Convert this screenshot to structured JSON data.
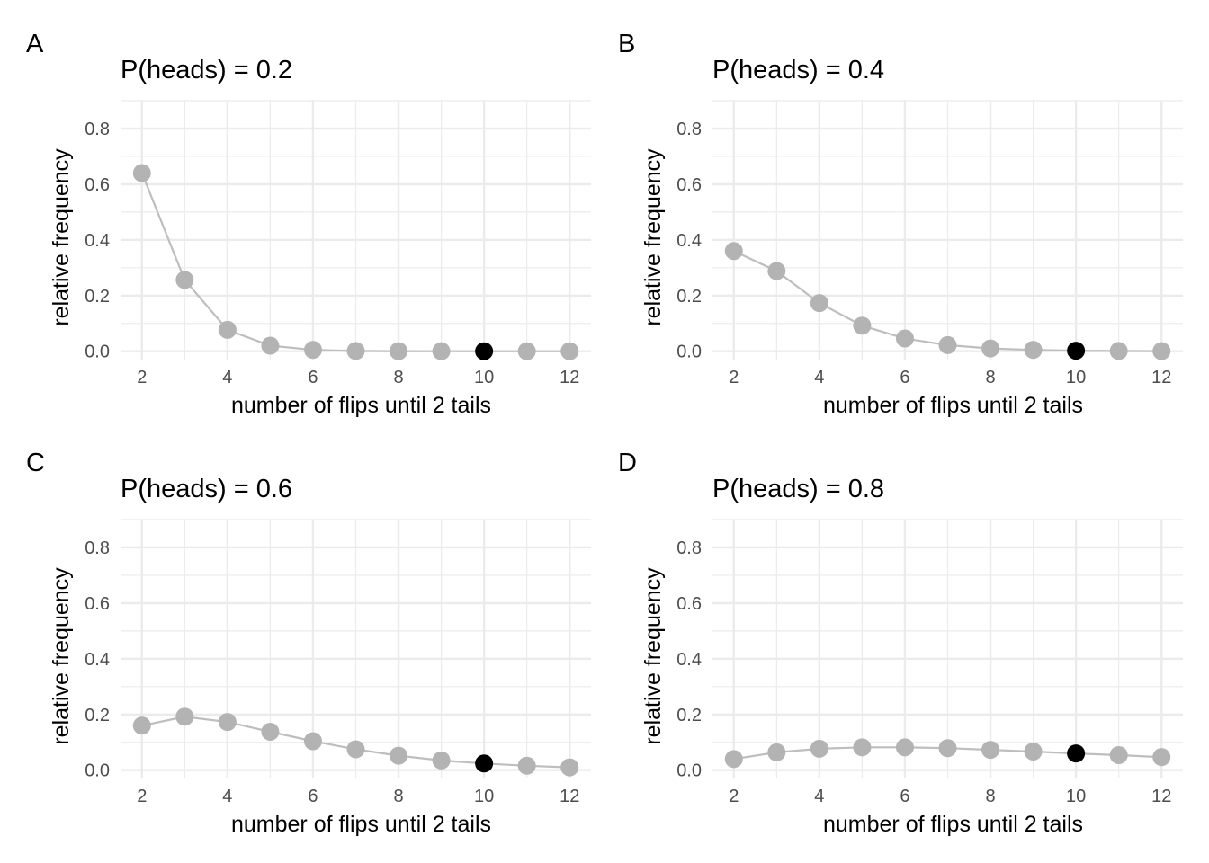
{
  "colors": {
    "point": "#b3b3b3",
    "highlight": "#000000",
    "line": "#bebebe",
    "grid": "#ebebeb"
  },
  "chart_data": [
    {
      "type": "line",
      "tag": "A",
      "title": "P(heads) = 0.2",
      "xlabel": "number of flips until 2 tails",
      "ylabel": "relative frequency",
      "x": [
        2,
        3,
        4,
        5,
        6,
        7,
        8,
        9,
        10,
        11,
        12
      ],
      "values": [
        0.64,
        0.256,
        0.077,
        0.02,
        0.005,
        0.001,
        0.0003,
        0.0001,
        2e-05,
        5e-06,
        1e-06
      ],
      "highlight_x": 10,
      "xlim": [
        1.5,
        12.5
      ],
      "ylim": [
        -0.03,
        0.9
      ],
      "xticks": [
        2,
        4,
        6,
        8,
        10,
        12
      ],
      "yticks": [
        0.0,
        0.2,
        0.4,
        0.6,
        0.8
      ],
      "ytick_labels": [
        "0.0",
        "0.2",
        "0.4",
        "0.6",
        "0.8"
      ],
      "grid": true
    },
    {
      "type": "line",
      "tag": "B",
      "title": "P(heads) = 0.4",
      "xlabel": "number of flips until 2 tails",
      "ylabel": "relative frequency",
      "x": [
        2,
        3,
        4,
        5,
        6,
        7,
        8,
        9,
        10,
        11,
        12
      ],
      "values": [
        0.36,
        0.288,
        0.173,
        0.092,
        0.046,
        0.022,
        0.01,
        0.005,
        0.002,
        0.001,
        0.0004
      ],
      "highlight_x": 10,
      "xlim": [
        1.5,
        12.5
      ],
      "ylim": [
        -0.03,
        0.9
      ],
      "xticks": [
        2,
        4,
        6,
        8,
        10,
        12
      ],
      "yticks": [
        0.0,
        0.2,
        0.4,
        0.6,
        0.8
      ],
      "ytick_labels": [
        "0.0",
        "0.2",
        "0.4",
        "0.6",
        "0.8"
      ],
      "grid": true
    },
    {
      "type": "line",
      "tag": "C",
      "title": "P(heads) = 0.6",
      "xlabel": "number of flips until 2 tails",
      "ylabel": "relative frequency",
      "x": [
        2,
        3,
        4,
        5,
        6,
        7,
        8,
        9,
        10,
        11,
        12
      ],
      "values": [
        0.16,
        0.192,
        0.173,
        0.138,
        0.104,
        0.075,
        0.052,
        0.035,
        0.024,
        0.016,
        0.01
      ],
      "highlight_x": 10,
      "xlim": [
        1.5,
        12.5
      ],
      "ylim": [
        -0.03,
        0.9
      ],
      "xticks": [
        2,
        4,
        6,
        8,
        10,
        12
      ],
      "yticks": [
        0.0,
        0.2,
        0.4,
        0.6,
        0.8
      ],
      "ytick_labels": [
        "0.0",
        "0.2",
        "0.4",
        "0.6",
        "0.8"
      ],
      "grid": true
    },
    {
      "type": "line",
      "tag": "D",
      "title": "P(heads) = 0.8",
      "xlabel": "number of flips until 2 tails",
      "ylabel": "relative frequency",
      "x": [
        2,
        3,
        4,
        5,
        6,
        7,
        8,
        9,
        10,
        11,
        12
      ],
      "values": [
        0.04,
        0.064,
        0.077,
        0.082,
        0.082,
        0.079,
        0.073,
        0.067,
        0.06,
        0.054,
        0.047
      ],
      "highlight_x": 10,
      "xlim": [
        1.5,
        12.5
      ],
      "ylim": [
        -0.03,
        0.9
      ],
      "xticks": [
        2,
        4,
        6,
        8,
        10,
        12
      ],
      "yticks": [
        0.0,
        0.2,
        0.4,
        0.6,
        0.8
      ],
      "ytick_labels": [
        "0.0",
        "0.2",
        "0.4",
        "0.6",
        "0.8"
      ],
      "grid": true
    }
  ]
}
